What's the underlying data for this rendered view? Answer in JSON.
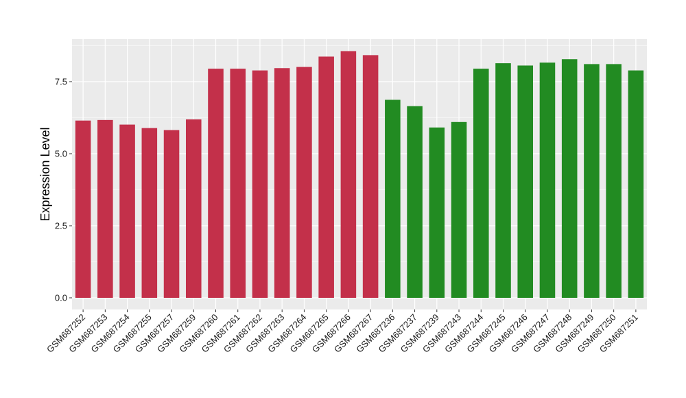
{
  "chart_data": {
    "type": "bar",
    "title": "",
    "xlabel": "",
    "ylabel": "Expression Level",
    "ylim": [
      0,
      9
    ],
    "yticks": [
      0.0,
      2.5,
      5.0,
      7.5
    ],
    "ytick_labels": [
      "0.0",
      "2.5",
      "5.0",
      "7.5"
    ],
    "grid": true,
    "legend": "none",
    "categories": [
      "GSM687252",
      "GSM687253",
      "GSM687254",
      "GSM687255",
      "GSM687257",
      "GSM687259",
      "GSM687260",
      "GSM687261",
      "GSM687262",
      "GSM687263",
      "GSM687264",
      "GSM687265",
      "GSM687266",
      "GSM687267",
      "GSM687236",
      "GSM687237",
      "GSM687239",
      "GSM687243",
      "GSM687244",
      "GSM687245",
      "GSM687246",
      "GSM687247",
      "GSM687248",
      "GSM687249",
      "GSM687250",
      "GSM687251"
    ],
    "values": [
      6.15,
      6.17,
      6.01,
      5.89,
      5.82,
      6.19,
      7.95,
      7.95,
      7.89,
      7.97,
      8.01,
      8.37,
      8.56,
      8.42,
      6.87,
      6.65,
      5.91,
      6.1,
      7.95,
      8.14,
      8.06,
      8.16,
      8.28,
      8.11,
      8.11,
      7.89
    ],
    "bar_colors": [
      "#C3304A",
      "#C3304A",
      "#C3304A",
      "#C3304A",
      "#C3304A",
      "#C3304A",
      "#C3304A",
      "#C3304A",
      "#C3304A",
      "#C3304A",
      "#C3304A",
      "#C3304A",
      "#C3304A",
      "#C3304A",
      "#228B22",
      "#228B22",
      "#228B22",
      "#228B22",
      "#228B22",
      "#228B22",
      "#228B22",
      "#228B22",
      "#228B22",
      "#228B22",
      "#228B22",
      "#228B22"
    ],
    "colors": {
      "panel_background": "#EBEBEB",
      "grid": "#FFFFFF",
      "group_a": "#C3304A",
      "group_b": "#228B22"
    }
  }
}
